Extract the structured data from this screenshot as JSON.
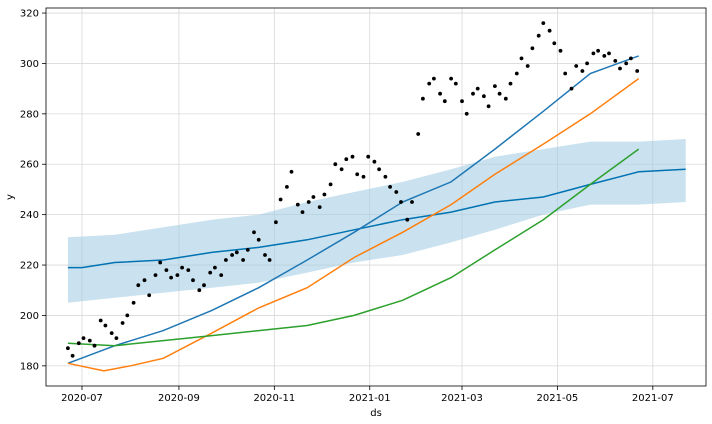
{
  "chart_data": {
    "type": "line",
    "title": "",
    "xlabel": "ds",
    "ylabel": "y",
    "grid": true,
    "legend": "none",
    "xlim": [
      "2020-06-08",
      "2021-08-04"
    ],
    "ylim": [
      172,
      322
    ],
    "x_ticks": [
      "2020-07-01",
      "2020-09-01",
      "2020-11-01",
      "2021-01-01",
      "2021-03-01",
      "2021-05-01",
      "2021-07-01"
    ],
    "x_tick_labels": [
      "2020-07",
      "2020-09",
      "2020-11",
      "2021-01",
      "2021-03",
      "2021-05",
      "2021-07"
    ],
    "y_ticks": [
      180,
      200,
      220,
      240,
      260,
      280,
      300,
      320
    ],
    "y_tick_labels": [
      "180",
      "200",
      "220",
      "240",
      "260",
      "280",
      "300",
      "320"
    ],
    "colors": {
      "band": "#9ecae1",
      "forecast": "#0072B2",
      "blue": "#1f77b4",
      "orange": "#ff7f0e",
      "green": "#2ca02c",
      "points": "#000000",
      "grid": "#d9d9d9"
    },
    "series": [
      {
        "kind": "band",
        "x": [
          "2020-06-22",
          "2020-07-22",
          "2020-08-22",
          "2020-09-22",
          "2020-10-22",
          "2020-11-22",
          "2020-12-22",
          "2021-01-22",
          "2021-02-22",
          "2021-03-22",
          "2021-04-22",
          "2021-05-22",
          "2021-06-22",
          "2021-07-22"
        ],
        "lower": [
          205,
          207,
          209,
          211,
          213,
          217,
          221,
          224,
          229,
          234,
          240,
          244,
          244,
          245
        ],
        "upper": [
          231,
          232,
          235,
          238,
          240,
          245,
          249,
          253,
          258,
          263,
          266,
          269,
          269,
          270
        ]
      },
      {
        "kind": "line",
        "color_key": "forecast",
        "x": [
          "2020-06-22",
          "2020-07-01",
          "2020-07-22",
          "2020-08-22",
          "2020-09-22",
          "2020-10-22",
          "2020-11-22",
          "2020-12-22",
          "2021-01-22",
          "2021-02-22",
          "2021-03-22",
          "2021-04-22",
          "2021-05-22",
          "2021-06-22",
          "2021-07-22"
        ],
        "y": [
          219,
          219,
          221,
          222,
          225,
          227,
          230,
          234,
          238,
          241,
          245,
          247,
          252,
          257,
          258
        ]
      },
      {
        "kind": "line",
        "color_key": "blue",
        "x": [
          "2020-06-22",
          "2020-07-22",
          "2020-08-22",
          "2020-09-22",
          "2020-10-22",
          "2020-11-22",
          "2020-12-22",
          "2021-01-22",
          "2021-02-22",
          "2021-03-22",
          "2021-04-22",
          "2021-05-22",
          "2021-06-22"
        ],
        "y": [
          181,
          188,
          194,
          202,
          211,
          222,
          233,
          245,
          253,
          266,
          281,
          296,
          303
        ]
      },
      {
        "kind": "line",
        "color_key": "orange",
        "x": [
          "2020-06-22",
          "2020-07-15",
          "2020-08-01",
          "2020-08-22",
          "2020-09-22",
          "2020-10-22",
          "2020-11-22",
          "2020-12-22",
          "2021-01-22",
          "2021-02-22",
          "2021-03-22",
          "2021-04-22",
          "2021-05-22",
          "2021-06-22"
        ],
        "y": [
          181,
          178,
          180,
          183,
          193,
          203,
          211,
          223,
          233,
          244,
          256,
          268,
          280,
          294
        ]
      },
      {
        "kind": "line",
        "color_key": "green",
        "x": [
          "2020-06-22",
          "2020-07-22",
          "2020-08-22",
          "2020-09-22",
          "2020-10-22",
          "2020-11-22",
          "2020-12-22",
          "2021-01-22",
          "2021-02-22",
          "2021-03-22",
          "2021-04-22",
          "2021-05-22",
          "2021-06-22"
        ],
        "y": [
          189,
          188,
          190,
          192,
          194,
          196,
          200,
          206,
          215,
          226,
          238,
          252,
          266
        ]
      },
      {
        "kind": "scatter",
        "color_key": "points",
        "x": [
          "2020-06-22",
          "2020-06-25",
          "2020-06-29",
          "2020-07-02",
          "2020-07-06",
          "2020-07-09",
          "2020-07-13",
          "2020-07-16",
          "2020-07-20",
          "2020-07-23",
          "2020-07-27",
          "2020-07-30",
          "2020-08-03",
          "2020-08-06",
          "2020-08-10",
          "2020-08-13",
          "2020-08-17",
          "2020-08-20",
          "2020-08-24",
          "2020-08-27",
          "2020-08-31",
          "2020-09-03",
          "2020-09-07",
          "2020-09-10",
          "2020-09-14",
          "2020-09-17",
          "2020-09-21",
          "2020-09-24",
          "2020-09-28",
          "2020-10-01",
          "2020-10-05",
          "2020-10-08",
          "2020-10-12",
          "2020-10-15",
          "2020-10-19",
          "2020-10-22",
          "2020-10-26",
          "2020-10-29",
          "2020-11-02",
          "2020-11-05",
          "2020-11-09",
          "2020-11-12",
          "2020-11-16",
          "2020-11-19",
          "2020-11-23",
          "2020-11-26",
          "2020-11-30",
          "2020-12-03",
          "2020-12-07",
          "2020-12-10",
          "2020-12-14",
          "2020-12-17",
          "2020-12-21",
          "2020-12-24",
          "2020-12-28",
          "2020-12-31",
          "2021-01-04",
          "2021-01-07",
          "2021-01-11",
          "2021-01-14",
          "2021-01-18",
          "2021-01-21",
          "2021-01-25",
          "2021-01-28",
          "2021-02-01",
          "2021-02-04",
          "2021-02-08",
          "2021-02-11",
          "2021-02-15",
          "2021-02-18",
          "2021-02-22",
          "2021-02-25",
          "2021-03-01",
          "2021-03-04",
          "2021-03-08",
          "2021-03-11",
          "2021-03-15",
          "2021-03-18",
          "2021-03-22",
          "2021-03-25",
          "2021-03-29",
          "2021-04-01",
          "2021-04-05",
          "2021-04-08",
          "2021-04-12",
          "2021-04-15",
          "2021-04-19",
          "2021-04-22",
          "2021-04-26",
          "2021-04-29",
          "2021-05-03",
          "2021-05-06",
          "2021-05-10",
          "2021-05-13",
          "2021-05-17",
          "2021-05-20",
          "2021-05-24",
          "2021-05-27",
          "2021-05-31",
          "2021-06-03",
          "2021-06-07",
          "2021-06-10",
          "2021-06-14",
          "2021-06-17",
          "2021-06-21"
        ],
        "y": [
          187,
          184,
          189,
          191,
          190,
          188,
          198,
          196,
          193,
          191,
          197,
          200,
          205,
          212,
          214,
          208,
          216,
          221,
          218,
          215,
          216,
          219,
          218,
          214,
          210,
          212,
          217,
          219,
          216,
          222,
          224,
          225,
          222,
          226,
          233,
          230,
          224,
          222,
          237,
          246,
          251,
          257,
          244,
          241,
          245,
          247,
          243,
          248,
          252,
          260,
          258,
          262,
          263,
          256,
          255,
          263,
          261,
          258,
          255,
          251,
          249,
          245,
          238,
          245,
          272,
          286,
          292,
          294,
          288,
          285,
          294,
          292,
          285,
          280,
          288,
          290,
          287,
          283,
          291,
          288,
          286,
          292,
          296,
          302,
          299,
          306,
          311,
          316,
          313,
          308,
          305,
          296,
          290,
          299,
          297,
          300,
          304,
          305,
          303,
          304,
          301,
          298,
          300,
          302,
          297
        ]
      }
    ]
  }
}
